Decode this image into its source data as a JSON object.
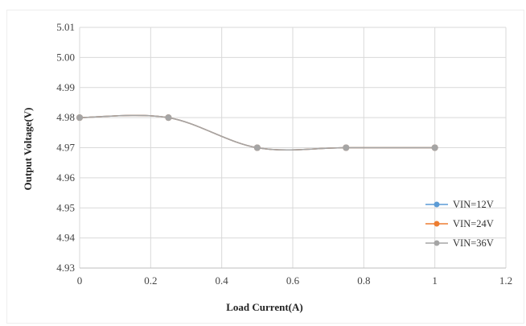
{
  "chart_data": {
    "type": "line",
    "smooth": true,
    "title": "",
    "xlabel": "Load Current(A)",
    "ylabel": "Output Voltage(V)",
    "xlim": [
      0,
      1.2
    ],
    "ylim": [
      4.93,
      5.01
    ],
    "x_ticks": [
      0,
      0.2,
      0.4,
      0.6,
      0.8,
      1,
      1.2
    ],
    "x_tick_labels": [
      "0",
      "0.2",
      "0.4",
      "0.6",
      "0.8",
      "1",
      "1.2"
    ],
    "y_ticks": [
      4.93,
      4.94,
      4.95,
      4.96,
      4.97,
      4.98,
      4.99,
      5.0,
      5.01
    ],
    "y_tick_labels": [
      "4.93",
      "4.94",
      "4.95",
      "4.96",
      "4.97",
      "4.98",
      "4.99",
      "5.00",
      "5.01"
    ],
    "grid": true,
    "legend_position": "right",
    "series": [
      {
        "name": "VIN=12V",
        "color": "#5b9bd5",
        "x": [
          0,
          0.25,
          0.5,
          0.75,
          1
        ],
        "y": [
          4.98,
          4.98,
          4.97,
          4.97,
          4.97
        ]
      },
      {
        "name": "VIN=24V",
        "color": "#ed7d31",
        "x": [
          0,
          0.25,
          0.5,
          0.75,
          1
        ],
        "y": [
          4.98,
          4.98,
          4.97,
          4.97,
          4.97
        ]
      },
      {
        "name": "VIN=36V",
        "color": "#a5a5a5",
        "x": [
          0,
          0.25,
          0.5,
          0.75,
          1
        ],
        "y": [
          4.98,
          4.98,
          4.97,
          4.97,
          4.97
        ]
      }
    ]
  }
}
